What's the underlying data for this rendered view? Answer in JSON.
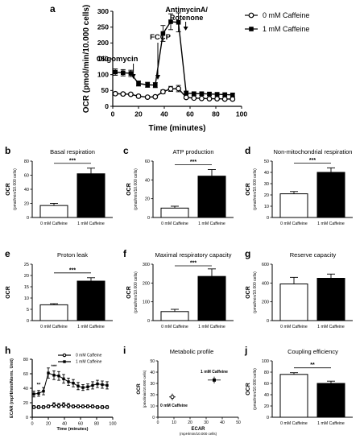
{
  "chart_data": [
    {
      "panel": "a",
      "type": "line",
      "xlabel": "Time (minutes)",
      "ylabel": "OCR (pmol/min/10.000 cells)",
      "xlim": [
        0,
        100
      ],
      "ylim": [
        0,
        300
      ],
      "xticks": [
        0,
        20,
        40,
        60,
        80,
        100
      ],
      "yticks": [
        0,
        50,
        100,
        150,
        200,
        250,
        300
      ],
      "legend_position": "top-right",
      "annotations": [
        {
          "text": "Oligomycin",
          "x": 16
        },
        {
          "text": "FCCP",
          "x": 35
        },
        {
          "text": "AntimycinA/",
          "x": 56
        },
        {
          "text": "Rotenone",
          "x": 56
        }
      ],
      "series": [
        {
          "name": "0 mM Caffeine",
          "marker": "open-circle",
          "x": [
            2,
            8,
            14,
            20,
            27,
            33,
            39,
            45,
            51,
            57,
            63,
            69,
            75,
            81,
            87,
            93
          ],
          "values": [
            40,
            39,
            38,
            32,
            29,
            30,
            46,
            55,
            56,
            28,
            26,
            25,
            24,
            24,
            23,
            23
          ],
          "errors": [
            4,
            4,
            4,
            4,
            3,
            3,
            6,
            8,
            10,
            4,
            3,
            3,
            3,
            3,
            3,
            3
          ]
        },
        {
          "name": "1 mM Caffeine",
          "marker": "filled-square",
          "x": [
            2,
            8,
            14,
            20,
            27,
            33,
            39,
            45,
            51,
            57,
            63,
            69,
            75,
            81,
            87,
            93
          ],
          "values": [
            108,
            106,
            104,
            72,
            68,
            67,
            230,
            267,
            265,
            42,
            40,
            40,
            39,
            38,
            37,
            36
          ],
          "errors": [
            10,
            10,
            10,
            8,
            8,
            8,
            25,
            25,
            30,
            6,
            5,
            5,
            5,
            5,
            5,
            5
          ]
        }
      ]
    },
    {
      "panel": "b",
      "type": "bar",
      "title": "Basal respiration",
      "ylabel": "OCR",
      "ylabel2": "(pmol/min/10.000 cells)",
      "categories": [
        "0 mM Caffeine",
        "1 mM Caffeine"
      ],
      "values": [
        17,
        62
      ],
      "errors": [
        3,
        8
      ],
      "ylim": [
        0,
        80
      ],
      "yticks": [
        0,
        20,
        40,
        60,
        80
      ],
      "significance": "***"
    },
    {
      "panel": "c",
      "type": "bar",
      "title": "ATP production",
      "ylabel": "OCR",
      "ylabel2": "(pmol/min/10.000 cells)",
      "categories": [
        "0 mM Caffeine",
        "1 mM Caffeine"
      ],
      "values": [
        10,
        44
      ],
      "errors": [
        2,
        7
      ],
      "ylim": [
        0,
        60
      ],
      "yticks": [
        0,
        20,
        40,
        60
      ],
      "significance": "***"
    },
    {
      "panel": "d",
      "type": "bar",
      "title": "Non-mitochondrial respiration",
      "ylabel": "OCR",
      "ylabel2": "(pmol/min/10.000 cells)",
      "categories": [
        "0 mM Caffeine",
        "1 mM Caffeine"
      ],
      "values": [
        21,
        40
      ],
      "errors": [
        2,
        4
      ],
      "ylim": [
        0,
        50
      ],
      "yticks": [
        0,
        10,
        20,
        30,
        40,
        50
      ],
      "significance": "***"
    },
    {
      "panel": "e",
      "type": "bar",
      "title": "Proton leak",
      "ylabel": "OCR",
      "ylabel2": "",
      "categories": [
        "0 mM Caffeine",
        "1 mM Caffeine"
      ],
      "values": [
        7,
        17.5
      ],
      "errors": [
        0.5,
        1.5
      ],
      "ylim": [
        0,
        25
      ],
      "yticks": [
        0,
        5,
        10,
        15,
        20,
        25
      ],
      "significance": "***"
    },
    {
      "panel": "f",
      "type": "bar",
      "title": "Maximal respiratory capacity",
      "ylabel": "OCR",
      "ylabel2": "(pmol/min/10.000 cells)",
      "categories": [
        "0 mM Caffeine",
        "1 mM Caffeine"
      ],
      "values": [
        48,
        235
      ],
      "errors": [
        12,
        40
      ],
      "ylim": [
        0,
        300
      ],
      "yticks": [
        0,
        100,
        200,
        300
      ],
      "significance": "***"
    },
    {
      "panel": "g",
      "type": "bar",
      "title": "Reserve capacity",
      "ylabel": "OCR",
      "ylabel2": "(pmol/min/10.000 cells)",
      "categories": [
        "0 mM Caffeine",
        "1 mM Caffeine"
      ],
      "values": [
        390,
        450
      ],
      "errors": [
        70,
        45
      ],
      "ylim": [
        0,
        600
      ],
      "yticks": [
        0,
        200,
        400,
        600
      ],
      "significance": ""
    },
    {
      "panel": "h",
      "type": "line",
      "xlabel": "Time (minutes)",
      "ylabel": "ECAR (mpH/min/Norm. Unit)",
      "xlim": [
        0,
        100
      ],
      "ylim": [
        0,
        80
      ],
      "xticks": [
        0,
        20,
        40,
        60,
        80,
        100
      ],
      "yticks": [
        0,
        20,
        40,
        60,
        80
      ],
      "legend_position": "top-right",
      "annotations": [
        {
          "text": "**",
          "x": 8
        },
        {
          "text": "***",
          "x": 27
        }
      ],
      "series": [
        {
          "name": "0 mM Caffeine",
          "marker": "open-circle",
          "x": [
            2,
            8,
            14,
            20,
            27,
            33,
            39,
            45,
            51,
            57,
            63,
            69,
            75,
            81,
            87,
            93
          ],
          "values": [
            14,
            14,
            14,
            15,
            17,
            16,
            17,
            16,
            15,
            15,
            15,
            15,
            15,
            14,
            14,
            14
          ],
          "errors": [
            2,
            2,
            2,
            2,
            3,
            3,
            3,
            3,
            2,
            2,
            2,
            2,
            2,
            2,
            2,
            2
          ]
        },
        {
          "name": "1 mM Caffeine",
          "marker": "filled-square",
          "x": [
            2,
            8,
            14,
            20,
            27,
            33,
            39,
            45,
            51,
            57,
            63,
            69,
            75,
            81,
            87,
            93
          ],
          "values": [
            32,
            33,
            36,
            61,
            58,
            57,
            53,
            49,
            47,
            43,
            41,
            42,
            44,
            46,
            45,
            44
          ],
          "errors": [
            4,
            4,
            5,
            7,
            6,
            6,
            6,
            5,
            5,
            5,
            4,
            4,
            5,
            5,
            5,
            5
          ]
        }
      ]
    },
    {
      "panel": "i",
      "type": "scatter",
      "title": "Metabolic profile",
      "xlabel": "ECAR",
      "xlabel2": "(mpH/min/10.000 cells)",
      "ylabel": "OCR",
      "ylabel2": "(pmol/min/10.000 cells)",
      "xlim": [
        0,
        50
      ],
      "ylim": [
        0,
        50
      ],
      "xticks": [
        0,
        10,
        20,
        30,
        40,
        50
      ],
      "yticks": [
        0,
        10,
        20,
        30,
        40,
        50
      ],
      "points": [
        {
          "label": "0 mM Caffeine",
          "x": 9,
          "y": 18,
          "xerr": 2,
          "yerr": 3
        },
        {
          "label": "1 mM Caffeine",
          "x": 35,
          "y": 33,
          "xerr": 4,
          "yerr": 3
        }
      ]
    },
    {
      "panel": "j",
      "type": "bar",
      "title": "Coupling efficiency",
      "ylabel": "OCR",
      "ylabel2": "(pmol/min/10.000 cells)",
      "categories": [
        "0 mM Caffeine",
        "1 mM Caffeine"
      ],
      "values": [
        76,
        60
      ],
      "errors": [
        3,
        4
      ],
      "ylim": [
        0,
        100
      ],
      "yticks": [
        0,
        20,
        40,
        60,
        80,
        100
      ],
      "significance": "**"
    }
  ]
}
